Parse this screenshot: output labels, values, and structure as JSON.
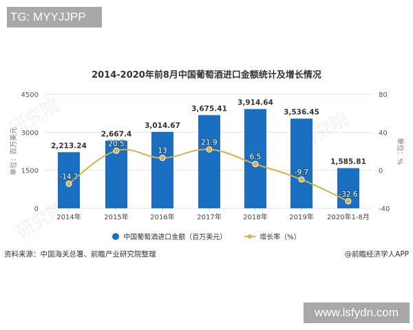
{
  "overlays": {
    "top_tag": "TG: MYYJJPP",
    "bottom_tag": "www.lsfydn.com"
  },
  "title": "2014-2020年前8月中国葡萄酒进口金额统计及增长情况",
  "legend": {
    "series1": "中国葡萄酒进口金额（百万美元）",
    "series2": "增长率（%）"
  },
  "footer": {
    "source": "资料来源：中国海关总署、前瞻产业研究院整理",
    "credit": "@前瞻经济学人APP"
  },
  "colors": {
    "bar": "#1a6fc0",
    "line": "#d4b24a",
    "grid": "#e3e3e3"
  },
  "chart_data": {
    "type": "bar+line",
    "title": "2014-2020年前8月中国葡萄酒进口金额统计及增长情况",
    "categories": [
      "2014年",
      "2015年",
      "2016年",
      "2017年",
      "2018年",
      "2019年",
      "2020年1-8月"
    ],
    "series": [
      {
        "name": "中国葡萄酒进口金额（百万美元）",
        "type": "bar",
        "axis": "left",
        "values": [
          2213.24,
          2667.4,
          3014.67,
          3675.41,
          3914.64,
          3536.45,
          1585.81
        ],
        "labels": [
          "2,213.24",
          "2,667.4",
          "3,014.67",
          "3,675.41",
          "3,914.64",
          "3,536.45",
          "1,585.81"
        ]
      },
      {
        "name": "增长率（%）",
        "type": "line",
        "axis": "right",
        "values": [
          -14.2,
          20.5,
          13,
          21.9,
          6.5,
          -9.7,
          -32.6
        ],
        "labels": [
          "-14.2",
          "20.5",
          "13",
          "21.9",
          "6.5",
          "-9.7",
          "-32.6"
        ]
      }
    ],
    "left_axis": {
      "label": "单位：百万美元",
      "ticks": [
        "4500",
        "3000",
        "1500",
        "0"
      ],
      "range": [
        0,
        4500
      ]
    },
    "right_axis": {
      "label": "单位：%",
      "ticks": [
        "80",
        "40",
        "0",
        "-40"
      ],
      "range": [
        -40,
        80
      ]
    },
    "grid": true,
    "legend_position": "bottom"
  }
}
